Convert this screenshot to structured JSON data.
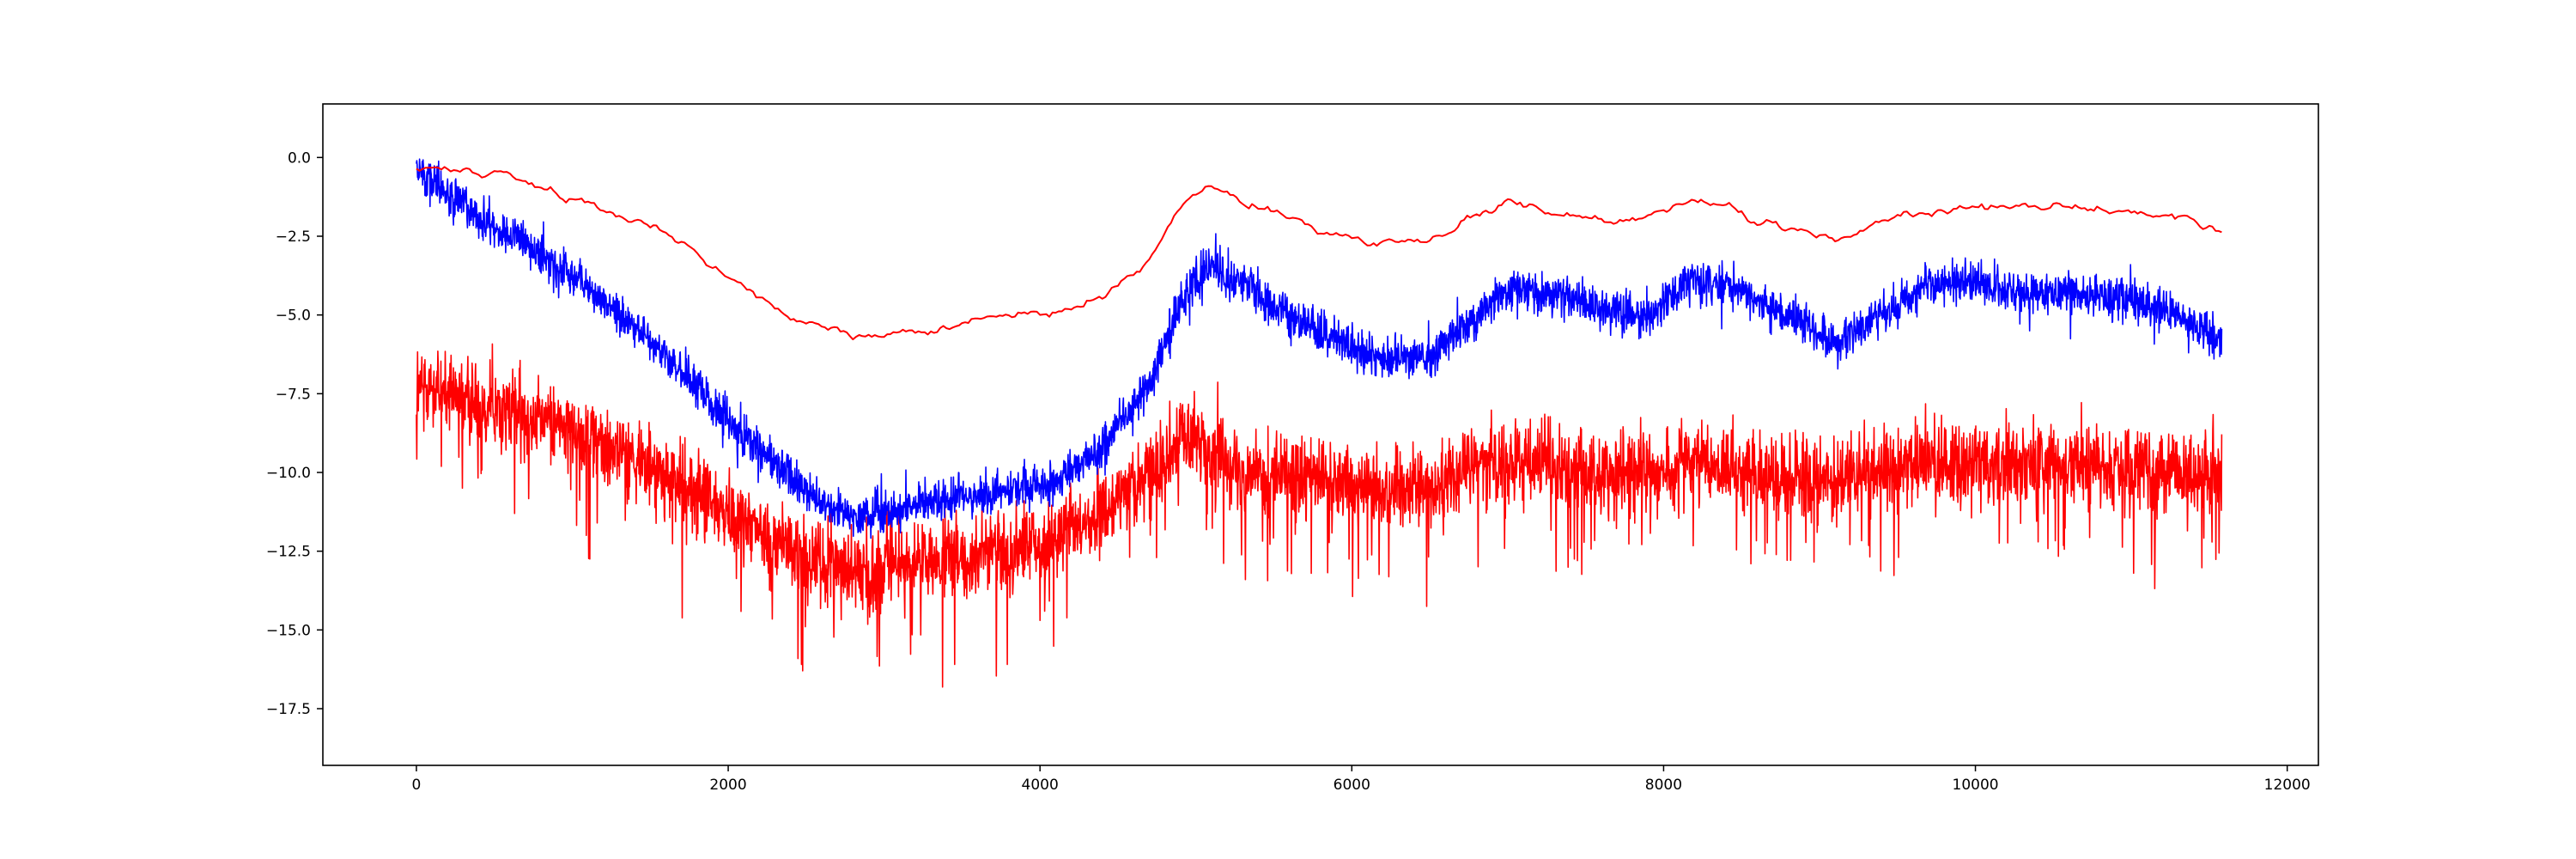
{
  "chart_data": {
    "type": "line",
    "title": "",
    "xlabel": "",
    "ylabel": "",
    "xlim": [
      -600,
      12200
    ],
    "ylim": [
      -19.3,
      1.7
    ],
    "x_ticks": [
      0,
      2000,
      4000,
      6000,
      8000,
      10000,
      12000
    ],
    "y_ticks": [
      0.0,
      -2.5,
      -5.0,
      -7.5,
      -10.0,
      -12.5,
      -15.0,
      -17.5
    ],
    "x_tick_labels": [
      "0",
      "2000",
      "4000",
      "6000",
      "8000",
      "10000",
      "12000"
    ],
    "y_tick_labels": [
      "0.0",
      "−2.5",
      "−5.0",
      "−7.5",
      "−10.0",
      "−12.5",
      "−15.0",
      "−17.5"
    ],
    "grid": false,
    "legend": "none",
    "x_max": 11580,
    "series": [
      {
        "color": "#ff0000",
        "style": "smooth",
        "x": [
          0,
          200,
          500,
          800,
          1100,
          1400,
          1700,
          2000,
          2300,
          2600,
          2900,
          3200,
          3500,
          3800,
          4100,
          4400,
          4700,
          4900,
          5100,
          5300,
          5600,
          5900,
          6200,
          6500,
          6800,
          7000,
          7300,
          7600,
          7900,
          8200,
          8500,
          8800,
          9100,
          9400,
          9700,
          10000,
          10300,
          10600,
          10900,
          11200,
          11580
        ],
        "y": [
          -0.3,
          -0.3,
          -0.6,
          -1.0,
          -1.4,
          -2.0,
          -2.8,
          -3.9,
          -4.8,
          -5.4,
          -5.7,
          -5.6,
          -5.3,
          -5.0,
          -4.9,
          -4.4,
          -3.3,
          -1.6,
          -0.9,
          -1.3,
          -1.9,
          -2.5,
          -2.8,
          -2.8,
          -1.9,
          -1.5,
          -1.7,
          -2.0,
          -1.8,
          -1.4,
          -1.7,
          -2.3,
          -2.6,
          -2.0,
          -1.6,
          -1.6,
          -1.7,
          -1.6,
          -1.8,
          -1.8,
          -2.3
        ],
        "noise": 0.08
      },
      {
        "color": "#0000ff",
        "style": "noisy",
        "x": [
          0,
          200,
          500,
          800,
          1100,
          1400,
          1700,
          2000,
          2300,
          2600,
          2900,
          3200,
          3500,
          3800,
          4100,
          4400,
          4700,
          4900,
          5100,
          5300,
          5600,
          5900,
          6200,
          6500,
          6800,
          7000,
          7300,
          7600,
          7900,
          8200,
          8500,
          8800,
          9100,
          9400,
          9700,
          10000,
          10300,
          10600,
          10900,
          11200,
          11580
        ],
        "y": [
          -0.3,
          -1.2,
          -2.2,
          -3.1,
          -4.2,
          -5.4,
          -6.8,
          -8.3,
          -9.8,
          -11.0,
          -11.4,
          -11.0,
          -10.8,
          -10.6,
          -10.3,
          -9.2,
          -7.2,
          -4.6,
          -3.4,
          -4.1,
          -5.0,
          -5.8,
          -6.4,
          -6.3,
          -5.0,
          -4.2,
          -4.3,
          -4.9,
          -5.0,
          -3.9,
          -4.3,
          -5.0,
          -5.9,
          -5.0,
          -4.0,
          -4.0,
          -4.3,
          -4.3,
          -4.5,
          -4.8,
          -5.8
        ],
        "noise": 0.45,
        "spike": 0.5
      },
      {
        "color": "#ff0000",
        "style": "noisy-down",
        "x": [
          0,
          200,
          500,
          800,
          1100,
          1400,
          1700,
          2000,
          2300,
          2600,
          2900,
          3200,
          3500,
          3800,
          4100,
          4400,
          4700,
          4900,
          5100,
          5300,
          5600,
          5900,
          6200,
          6500,
          6800,
          7000,
          7300,
          7600,
          7900,
          8200,
          8500,
          8800,
          9100,
          9400,
          9700,
          10000,
          10300,
          10600,
          10900,
          11200,
          11580
        ],
        "y": [
          -7.3,
          -7.5,
          -7.9,
          -8.3,
          -8.9,
          -9.6,
          -10.4,
          -11.3,
          -12.2,
          -12.9,
          -13.1,
          -12.9,
          -12.8,
          -12.5,
          -12.2,
          -11.3,
          -10.0,
          -8.8,
          -9.3,
          -10.0,
          -10.2,
          -10.3,
          -10.5,
          -10.4,
          -9.8,
          -9.6,
          -9.7,
          -10.1,
          -10.0,
          -9.6,
          -9.9,
          -10.1,
          -10.2,
          -9.9,
          -9.6,
          -9.7,
          -9.7,
          -9.7,
          -9.8,
          -9.9,
          -10.1
        ],
        "noise": 0.9,
        "spike": 2.2
      }
    ]
  }
}
